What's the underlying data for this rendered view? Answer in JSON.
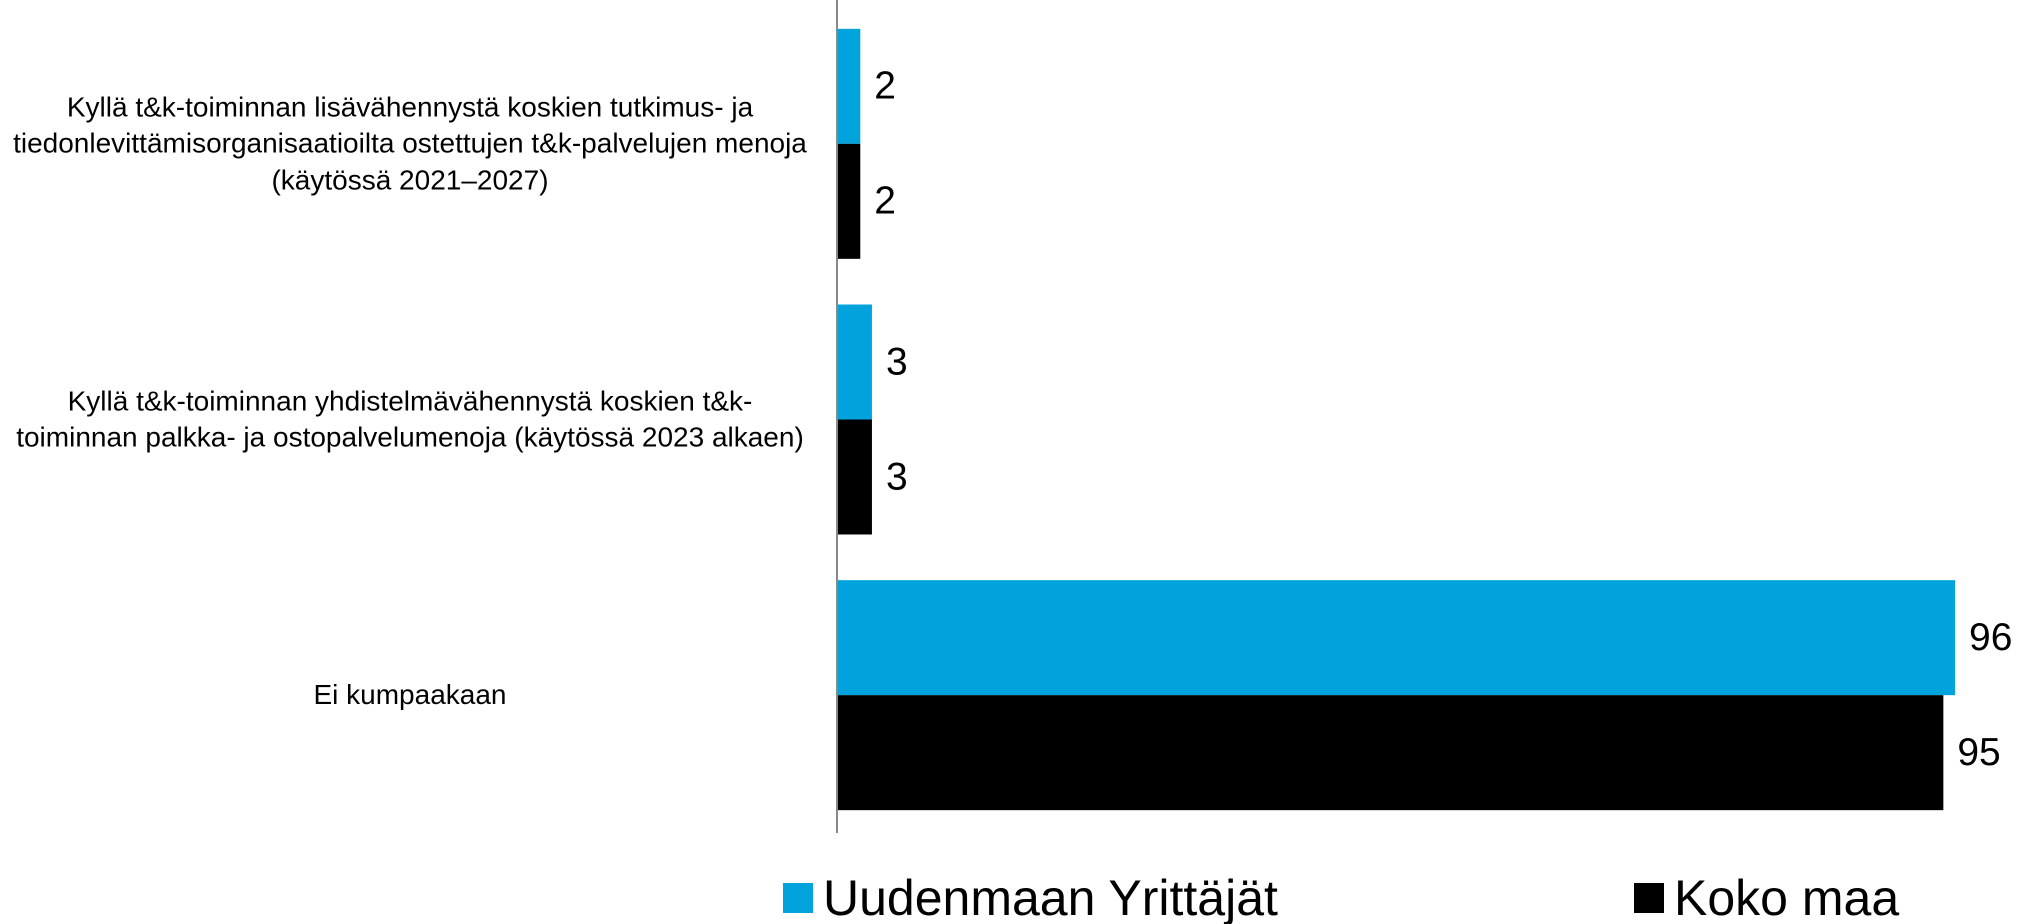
{
  "chart_data": {
    "type": "bar",
    "orientation": "horizontal",
    "categories": [
      "Kyllä t&k-toiminnan lisävähennystä koskien tutkimus- ja tiedonlevittämisorganisaatioilta ostettujen t&k-palvelujen menoja (käytössä 2021–2027)",
      "Kyllä t&k-toiminnan yhdistelmävähennystä koskien t&k-toiminnan palkka- ja ostopalvelumenoja (käytössä 2023 alkaen)",
      "Ei kumpaakaan"
    ],
    "series": [
      {
        "name": "Uudenmaan Yrittäjät",
        "color": "#00a3dc",
        "values": [
          2,
          3,
          96
        ]
      },
      {
        "name": "Koko maa",
        "color": "#000000",
        "values": [
          2,
          3,
          95
        ]
      }
    ]
  }
}
